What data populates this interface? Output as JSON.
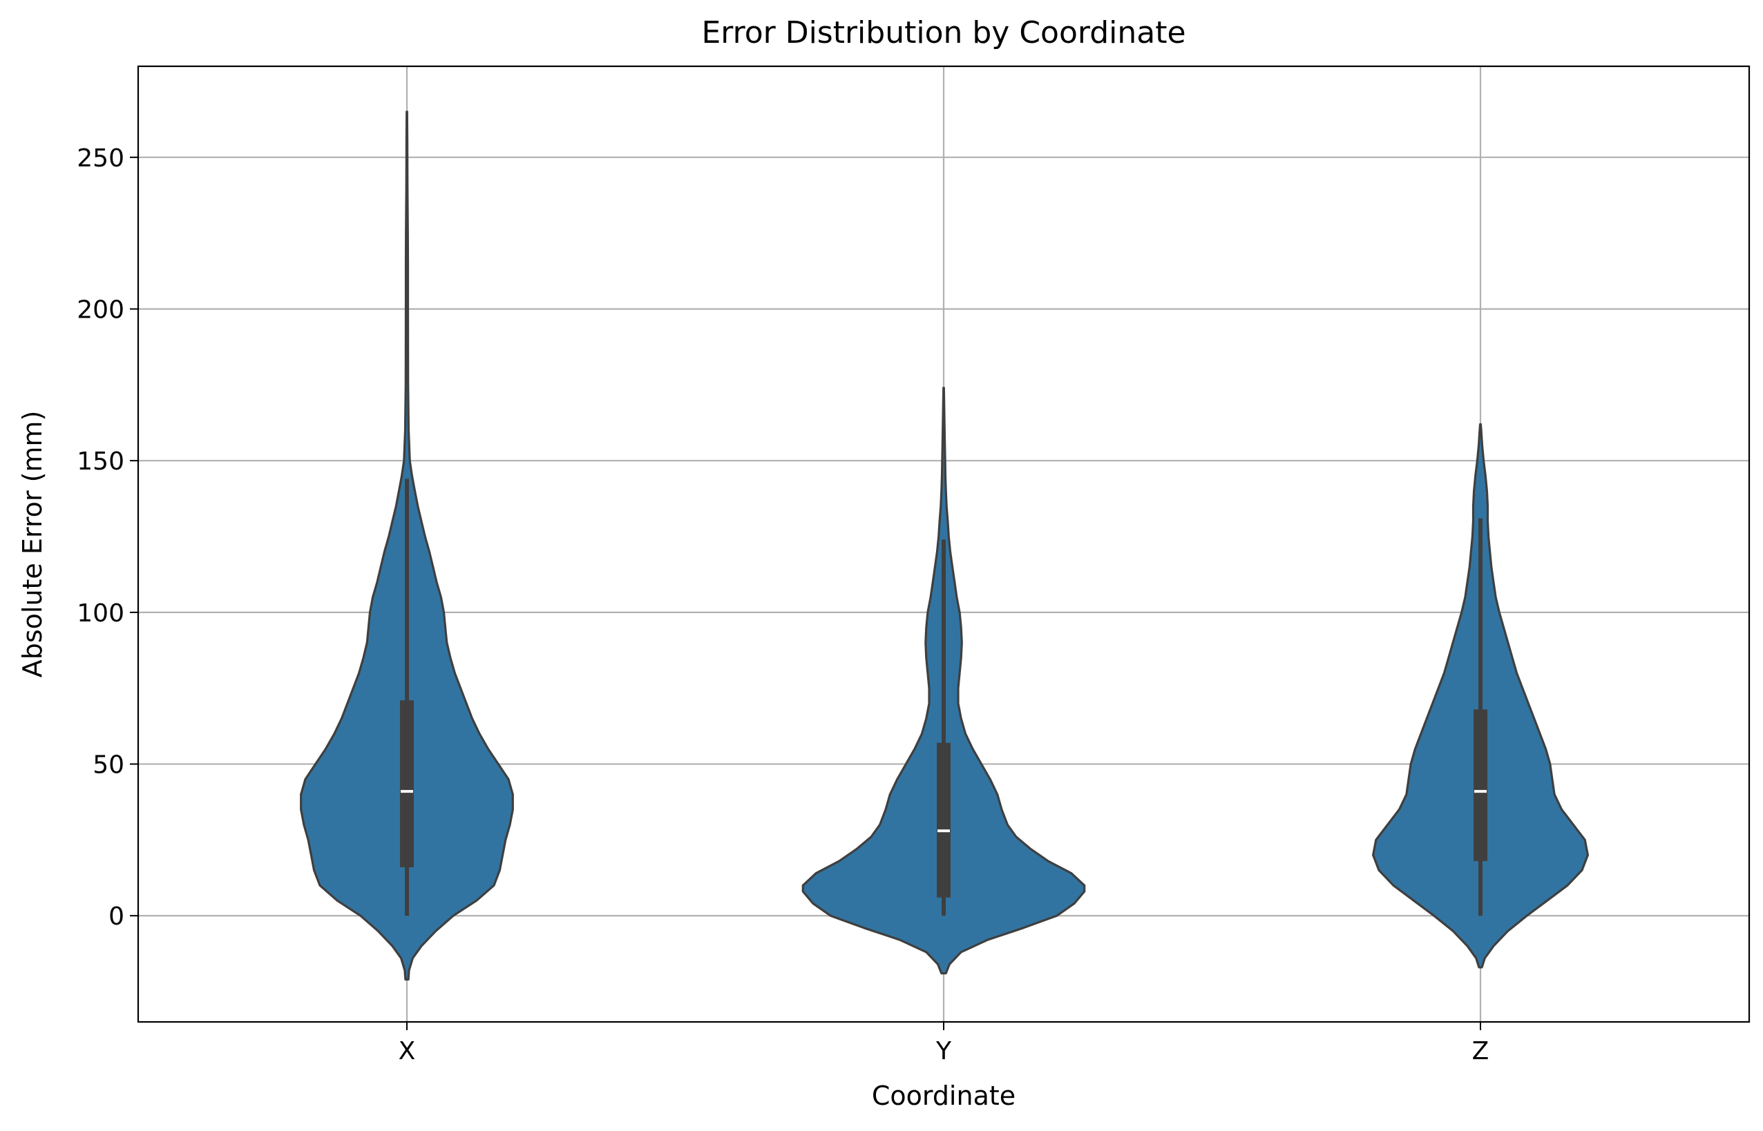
{
  "chart_data": {
    "type": "violin",
    "title": "Error Distribution by Coordinate",
    "xlabel": "Coordinate",
    "ylabel": "Absolute Error (mm)",
    "categories": [
      "X",
      "Y",
      "Z"
    ],
    "ylim": [
      -35,
      280
    ],
    "yticks": [
      0,
      50,
      100,
      150,
      200,
      250
    ],
    "grid": true,
    "colors": {
      "fill": "#3274a1",
      "edge": "#3f3f3f",
      "box": "#3f3f3f",
      "median": "#ffffff",
      "grid": "#b0b0b0"
    },
    "series": [
      {
        "category": "X",
        "min": 0,
        "q1": 16,
        "median": 41,
        "q3": 71,
        "max": 144,
        "kde_range": [
          -21,
          265
        ],
        "density": [
          [
            -21,
            0.01
          ],
          [
            -18,
            0.015
          ],
          [
            -14,
            0.04
          ],
          [
            -10,
            0.1
          ],
          [
            -5,
            0.2
          ],
          [
            0,
            0.32
          ],
          [
            5,
            0.48
          ],
          [
            10,
            0.6
          ],
          [
            15,
            0.64
          ],
          [
            20,
            0.66
          ],
          [
            25,
            0.68
          ],
          [
            30,
            0.71
          ],
          [
            35,
            0.73
          ],
          [
            40,
            0.73
          ],
          [
            45,
            0.7
          ],
          [
            50,
            0.63
          ],
          [
            55,
            0.56
          ],
          [
            60,
            0.5
          ],
          [
            65,
            0.45
          ],
          [
            70,
            0.41
          ],
          [
            75,
            0.37
          ],
          [
            80,
            0.33
          ],
          [
            85,
            0.3
          ],
          [
            90,
            0.275
          ],
          [
            95,
            0.265
          ],
          [
            100,
            0.255
          ],
          [
            105,
            0.235
          ],
          [
            110,
            0.205
          ],
          [
            115,
            0.18
          ],
          [
            120,
            0.155
          ],
          [
            125,
            0.125
          ],
          [
            130,
            0.1
          ],
          [
            135,
            0.075
          ],
          [
            140,
            0.055
          ],
          [
            145,
            0.035
          ],
          [
            150,
            0.02
          ],
          [
            160,
            0.012
          ],
          [
            175,
            0.008
          ],
          [
            200,
            0.007
          ],
          [
            215,
            0.007
          ],
          [
            225,
            0.006
          ],
          [
            240,
            0.004
          ],
          [
            255,
            0.003
          ],
          [
            265,
            0.0015
          ]
        ]
      },
      {
        "category": "Y",
        "min": 0,
        "q1": 6,
        "median": 28,
        "q3": 57,
        "max": 124,
        "kde_range": [
          -19,
          174
        ],
        "density": [
          [
            -19,
            0.015
          ],
          [
            -16,
            0.04
          ],
          [
            -12,
            0.12
          ],
          [
            -8,
            0.3
          ],
          [
            -4,
            0.55
          ],
          [
            0,
            0.78
          ],
          [
            4,
            0.9
          ],
          [
            8,
            0.97
          ],
          [
            10,
            0.97
          ],
          [
            14,
            0.88
          ],
          [
            18,
            0.72
          ],
          [
            22,
            0.6
          ],
          [
            26,
            0.5
          ],
          [
            30,
            0.44
          ],
          [
            35,
            0.4
          ],
          [
            40,
            0.37
          ],
          [
            45,
            0.32
          ],
          [
            50,
            0.26
          ],
          [
            55,
            0.2
          ],
          [
            60,
            0.15
          ],
          [
            65,
            0.12
          ],
          [
            70,
            0.1
          ],
          [
            75,
            0.1
          ],
          [
            80,
            0.11
          ],
          [
            85,
            0.12
          ],
          [
            90,
            0.125
          ],
          [
            95,
            0.12
          ],
          [
            100,
            0.11
          ],
          [
            105,
            0.09
          ],
          [
            110,
            0.075
          ],
          [
            115,
            0.06
          ],
          [
            120,
            0.045
          ],
          [
            125,
            0.035
          ],
          [
            130,
            0.028
          ],
          [
            135,
            0.02
          ],
          [
            140,
            0.015
          ],
          [
            145,
            0.012
          ],
          [
            150,
            0.01
          ],
          [
            160,
            0.006
          ],
          [
            170,
            0.003
          ],
          [
            174,
            0.0015
          ]
        ]
      },
      {
        "category": "Z",
        "min": 0,
        "q1": 18,
        "median": 41,
        "q3": 68,
        "max": 131,
        "kde_range": [
          -17,
          162
        ],
        "density": [
          [
            -17,
            0.01
          ],
          [
            -14,
            0.03
          ],
          [
            -10,
            0.09
          ],
          [
            -5,
            0.19
          ],
          [
            0,
            0.32
          ],
          [
            5,
            0.46
          ],
          [
            10,
            0.6
          ],
          [
            15,
            0.7
          ],
          [
            20,
            0.74
          ],
          [
            25,
            0.72
          ],
          [
            30,
            0.64
          ],
          [
            35,
            0.56
          ],
          [
            40,
            0.51
          ],
          [
            45,
            0.495
          ],
          [
            50,
            0.48
          ],
          [
            55,
            0.45
          ],
          [
            60,
            0.41
          ],
          [
            65,
            0.37
          ],
          [
            70,
            0.33
          ],
          [
            75,
            0.29
          ],
          [
            80,
            0.25
          ],
          [
            85,
            0.22
          ],
          [
            90,
            0.19
          ],
          [
            95,
            0.16
          ],
          [
            100,
            0.13
          ],
          [
            105,
            0.105
          ],
          [
            110,
            0.09
          ],
          [
            115,
            0.075
          ],
          [
            120,
            0.065
          ],
          [
            125,
            0.055
          ],
          [
            130,
            0.05
          ],
          [
            135,
            0.05
          ],
          [
            140,
            0.045
          ],
          [
            145,
            0.035
          ],
          [
            150,
            0.022
          ],
          [
            155,
            0.012
          ],
          [
            160,
            0.005
          ],
          [
            162,
            0.002
          ]
        ]
      }
    ]
  }
}
